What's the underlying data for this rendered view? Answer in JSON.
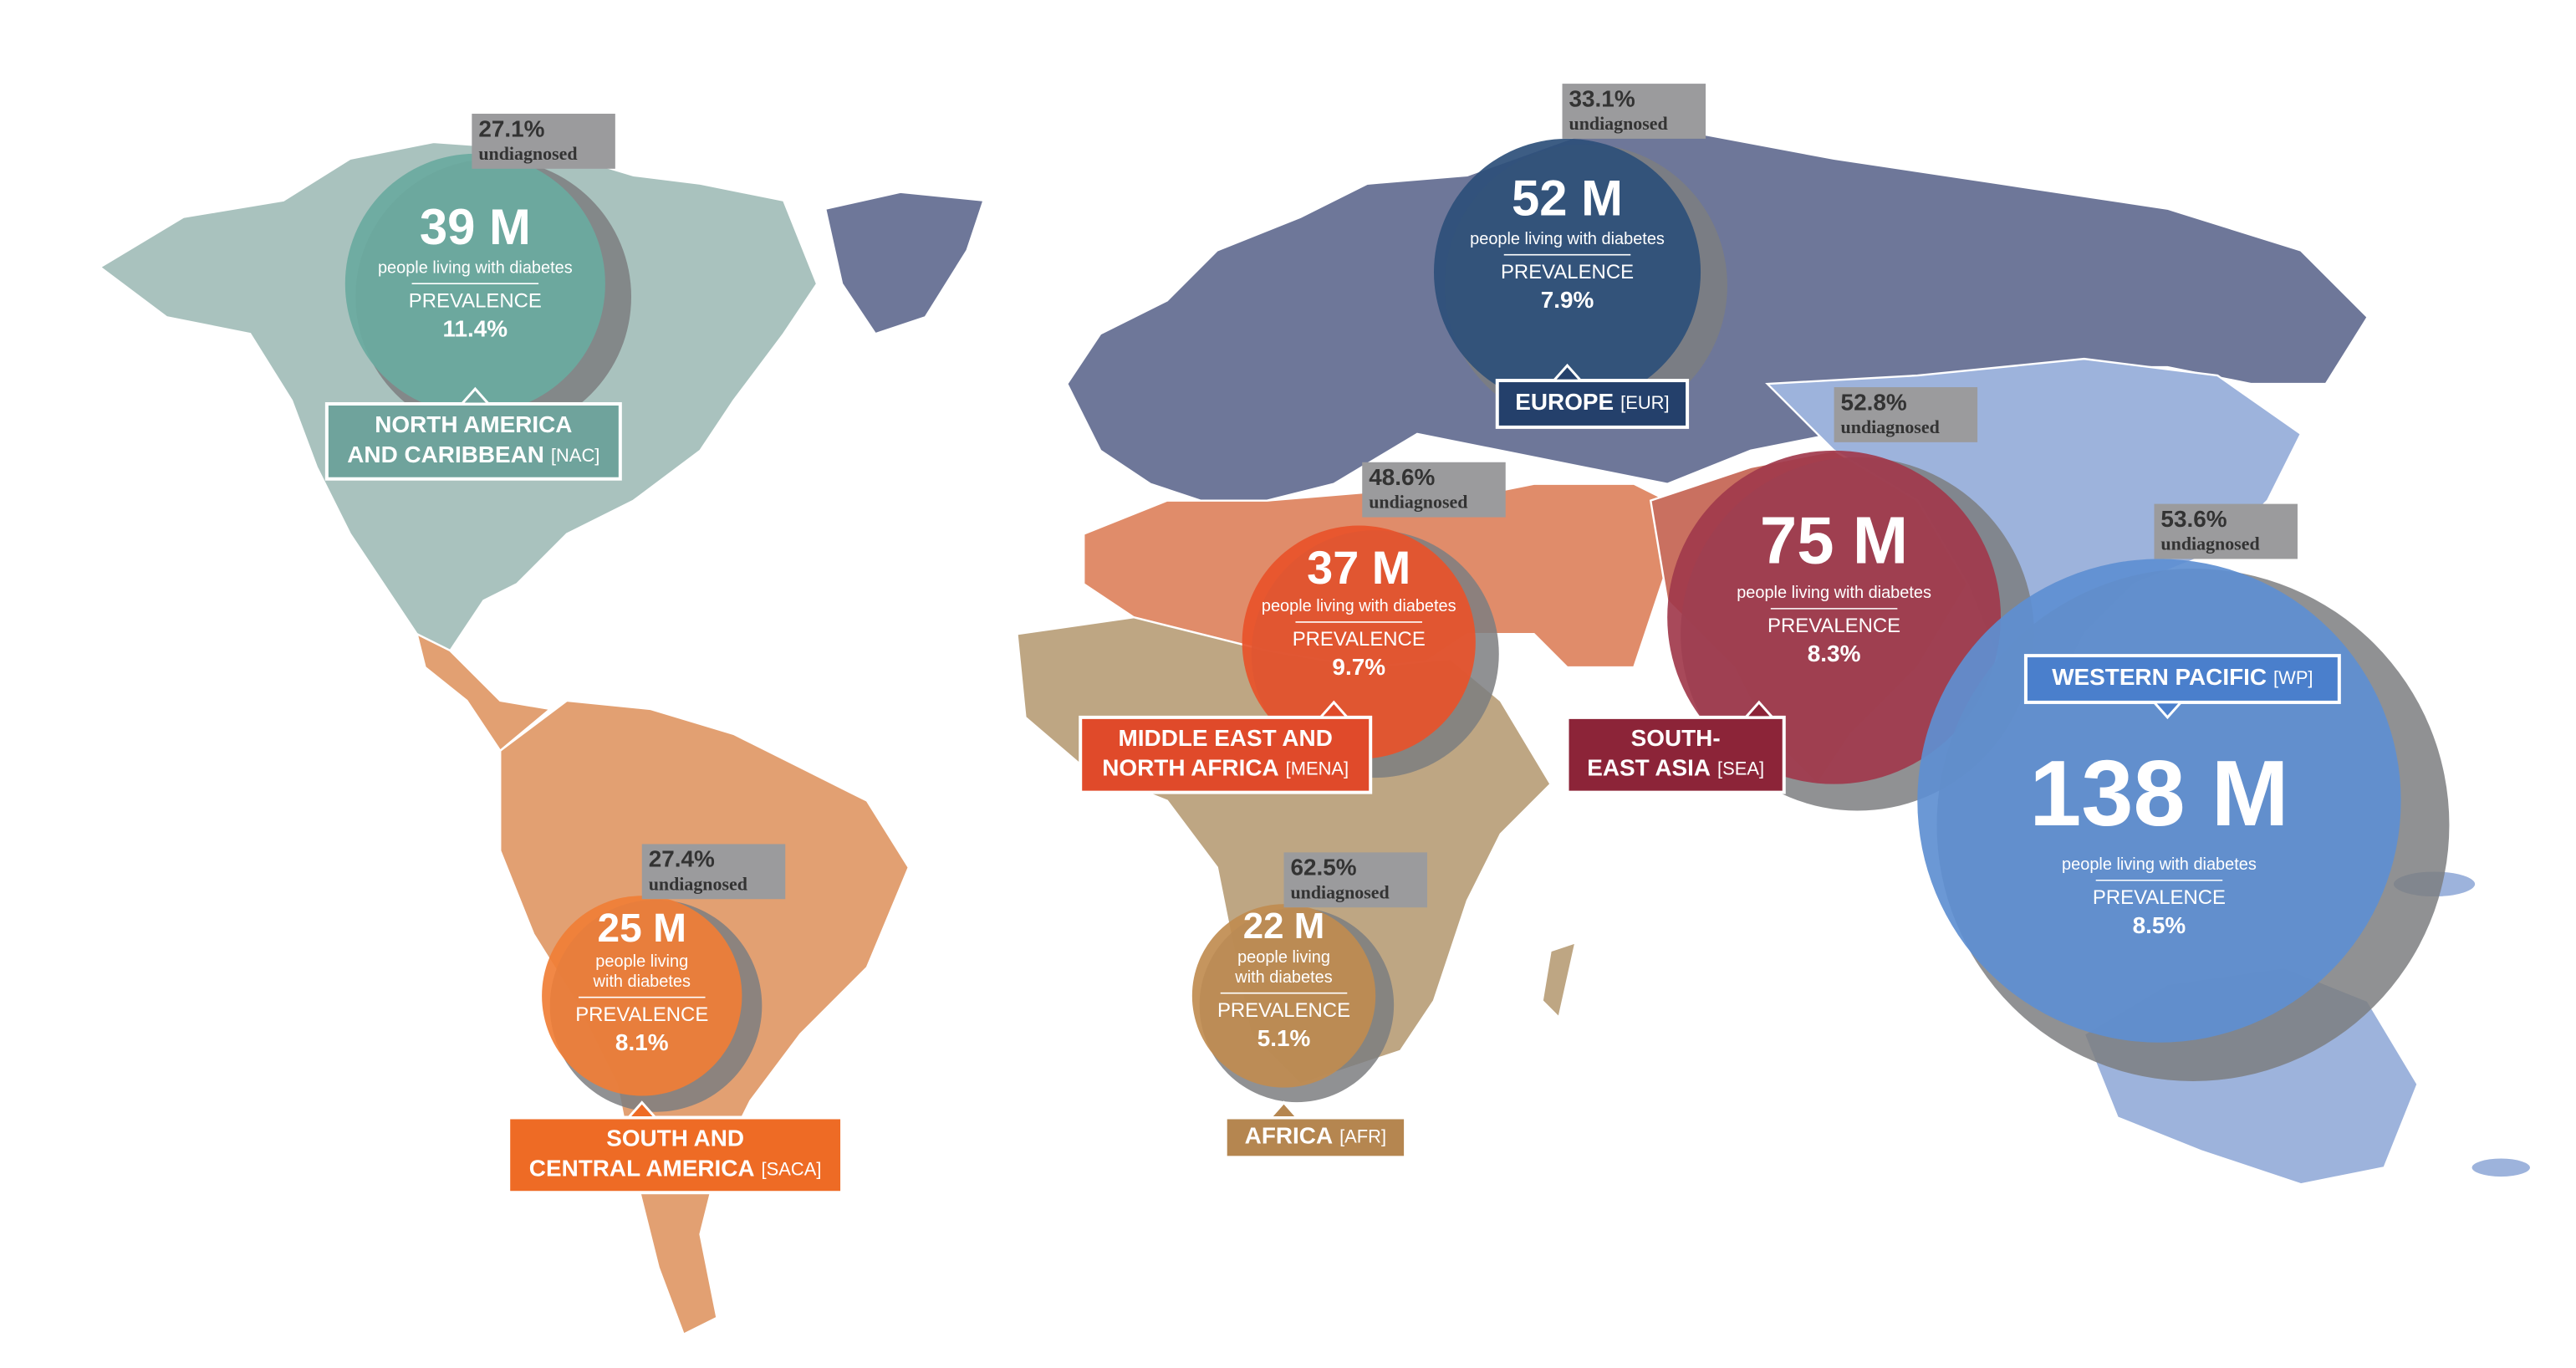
{
  "labels": {
    "people": "people living with diabetes",
    "prevalence": "PREVALENCE",
    "undiagnosed": "undiagnosed"
  },
  "regions": [
    {
      "name_lines": [
        "NORTH AMERICA",
        "AND CARIBBEAN"
      ],
      "code": "[NAC]",
      "people": "39 M",
      "people_label_lines": [
        "people living with diabetes"
      ],
      "prevalence": "11.4%",
      "undiagnosed": "27.1%"
    },
    {
      "name_lines": [
        "EUROPE"
      ],
      "code": "[EUR]",
      "people": "52 M",
      "people_label_lines": [
        "people living with diabetes"
      ],
      "prevalence": "7.9%",
      "undiagnosed": "33.1%"
    },
    {
      "name_lines": [
        "MIDDLE EAST AND",
        "NORTH AFRICA"
      ],
      "code": "[MENA]",
      "people": "37 M",
      "people_label_lines": [
        "people living with diabetes"
      ],
      "prevalence": "9.7%",
      "undiagnosed": "48.6%"
    },
    {
      "name_lines": [
        "SOUTH-",
        "EAST ASIA"
      ],
      "code": "[SEA]",
      "people": "75 M",
      "people_label_lines": [
        "people living with diabetes"
      ],
      "prevalence": "8.3%",
      "undiagnosed": "52.8%"
    },
    {
      "name_lines": [
        "WESTERN PACIFIC"
      ],
      "code": "[WP]",
      "people": "138 M",
      "people_label_lines": [
        "people living with diabetes"
      ],
      "prevalence": "8.5%",
      "undiagnosed": "53.6%"
    },
    {
      "name_lines": [
        "SOUTH AND",
        "CENTRAL AMERICA"
      ],
      "code": "[SACA]",
      "people": "25 M",
      "people_label_lines": [
        "people living",
        "with diabetes"
      ],
      "prevalence": "8.1%",
      "undiagnosed": "27.4%"
    },
    {
      "name_lines": [
        "AFRICA"
      ],
      "code": "[AFR]",
      "people": "22 M",
      "people_label_lines": [
        "people living",
        "with diabetes"
      ],
      "prevalence": "5.1%",
      "undiagnosed": "62.5%"
    }
  ]
}
